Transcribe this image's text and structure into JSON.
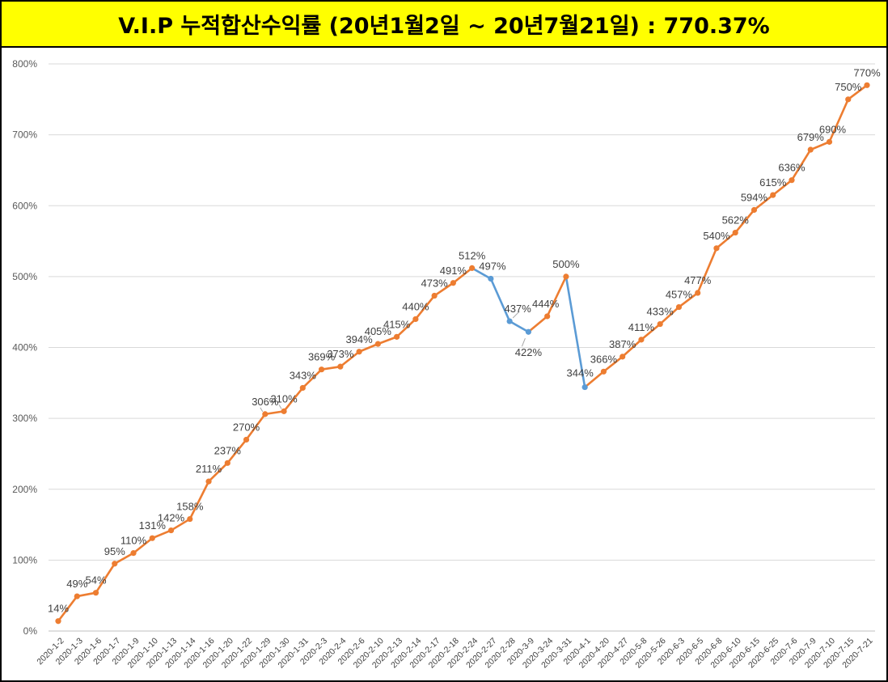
{
  "header": {
    "title": "V.I.P 누적합산수익률 (20년1월2일 ~ 20년7월21일) : 770.37%"
  },
  "chart_data": {
    "type": "line",
    "title": "V.I.P 누적합산수익률 (20년1월2일 ~ 20년7월21일) : 770.37%",
    "xlabel": "",
    "ylabel": "",
    "ylim": [
      0,
      800
    ],
    "y_ticks": [
      "0%",
      "100%",
      "200%",
      "300%",
      "400%",
      "500%",
      "600%",
      "700%",
      "800%"
    ],
    "grid": true,
    "colors": {
      "up": "#ed7d31",
      "down": "#5b9bd5"
    },
    "categories": [
      "2020-1-2",
      "2020-1-3",
      "2020-1-6",
      "2020-1-7",
      "2020-1-9",
      "2020-1-10",
      "2020-1-13",
      "2020-1-14",
      "2020-1-16",
      "2020-1-20",
      "2020-1-22",
      "2020-1-29",
      "2020-1-30",
      "2020-1-31",
      "2020-2-3",
      "2020-2-4",
      "2020-2-6",
      "2020-2-10",
      "2020-2-13",
      "2020-2-14",
      "2020-2-17",
      "2020-2-18",
      "2020-2-24",
      "2020-2-27",
      "2020-2-28",
      "2020-3-9",
      "2020-3-24",
      "2020-3-31",
      "2020-4-1",
      "2020-4-20",
      "2020-4-27",
      "2020-5-8",
      "2020-5-26",
      "2020-6-3",
      "2020-6-5",
      "2020-6-8",
      "2020-6-10",
      "2020-6-15",
      "2020-6-25",
      "2020-7-6",
      "2020-7-9",
      "2020-7-10",
      "2020-7-15",
      "2020-7-21"
    ],
    "values": [
      14,
      49,
      54,
      95,
      110,
      131,
      142,
      158,
      211,
      237,
      270,
      306,
      310,
      343,
      369,
      373,
      394,
      405,
      415,
      440,
      473,
      491,
      512,
      497,
      437,
      422,
      444,
      500,
      344,
      366,
      387,
      411,
      433,
      457,
      477,
      540,
      562,
      594,
      615,
      636,
      679,
      690,
      750,
      770
    ],
    "labels": [
      "14%",
      "49%",
      "54%",
      "95%",
      "110%",
      "131%",
      "142%",
      "158%",
      "211%",
      "237%",
      "270%",
      "306%",
      "310%",
      "343%",
      "369%",
      "373%",
      "394%",
      "405%",
      "415%",
      "440%",
      "473%",
      "491%",
      "512%",
      "497%",
      "437%",
      "422%",
      "444%",
      "500%",
      "344%",
      "366%",
      "387%",
      "411%",
      "433%",
      "457%",
      "477%",
      "540%",
      "562%",
      "594%",
      "615%",
      "636%",
      "679%",
      "690%",
      "750%",
      "770%"
    ]
  }
}
